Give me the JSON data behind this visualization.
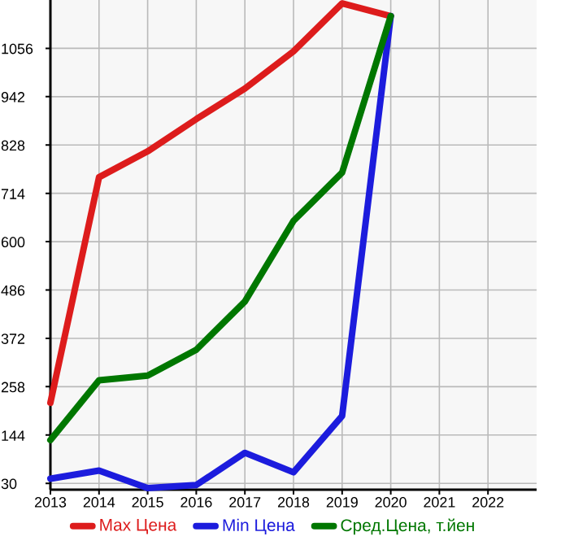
{
  "chart_data": {
    "type": "line",
    "x": [
      2013,
      2014,
      2015,
      2016,
      2017,
      2018,
      2019,
      2020
    ],
    "xlim": [
      2013,
      2023
    ],
    "xticks": [
      2013,
      2014,
      2015,
      2016,
      2017,
      2018,
      2019,
      2020,
      2021,
      2022
    ],
    "ylim": [
      15,
      1170
    ],
    "yticks": [
      30,
      144,
      258,
      372,
      486,
      600,
      714,
      828,
      942,
      1056
    ],
    "grid": true,
    "legend": "bottom",
    "marker": "none",
    "line_style": "solid",
    "series": [
      {
        "name": "Max Цена",
        "color": "#dd1c1c",
        "values": [
          220,
          752,
          813,
          889,
          961,
          1049,
          1162,
          1132
        ]
      },
      {
        "name": "Min Цена",
        "color": "#1c1cdd",
        "values": [
          41,
          60,
          19,
          26,
          102,
          56,
          189,
          1132
        ]
      },
      {
        "name": "Сред.Цена, т.йен",
        "color": "#007700",
        "values": [
          132,
          273,
          284,
          345,
          459,
          649,
          763,
          1132
        ]
      }
    ]
  }
}
